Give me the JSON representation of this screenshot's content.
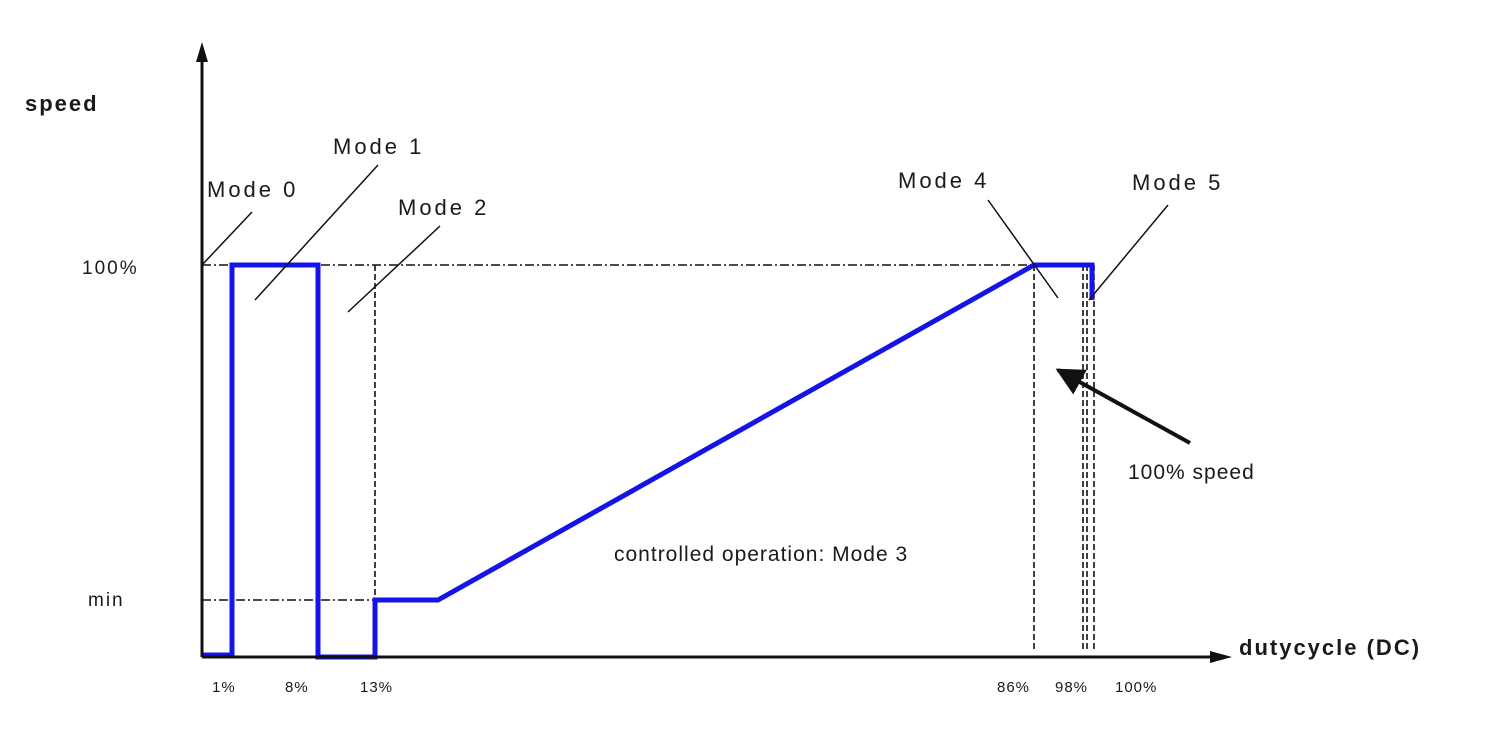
{
  "axes": {
    "y_title": "speed",
    "x_title": "dutycycle (DC)"
  },
  "y_ticks": [
    {
      "label": "100%",
      "value": 100
    },
    {
      "label": "min",
      "value": 12
    }
  ],
  "x_ticks": [
    {
      "label": "1%",
      "value": 1
    },
    {
      "label": "8%",
      "value": 8
    },
    {
      "label": "13%",
      "value": 13
    },
    {
      "label": "86%",
      "value": 86
    },
    {
      "label": "98%",
      "value": 98
    },
    {
      "label": "100%",
      "value": 100
    }
  ],
  "modes": [
    {
      "label": "Mode 0"
    },
    {
      "label": "Mode 1"
    },
    {
      "label": "Mode 2"
    },
    {
      "label": "Mode 4"
    },
    {
      "label": "Mode 5"
    }
  ],
  "annotations": {
    "full_speed": "100% speed",
    "mode3": "controlled operation: Mode 3"
  },
  "colors": {
    "curve": "#1414e6",
    "axis": "#111111"
  }
}
